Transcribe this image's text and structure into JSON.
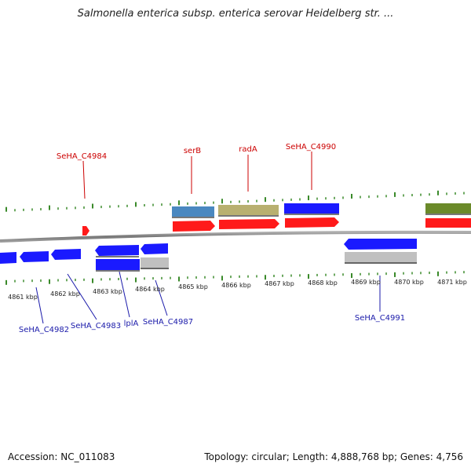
{
  "title": "Salmonella enterica subsp. enterica serovar Heidelberg str. ...",
  "footer": {
    "accession": "Accession: NC_011083",
    "topology": "Topology: circular; Length: 4,888,768 bp; Genes: 4,756"
  },
  "colors": {
    "forward_label": "#cc0000",
    "reverse_label": "#1a1aaa",
    "tick": "#3a8a2a",
    "backbone": "#888888"
  },
  "scale_labels": [
    "4861 kbp",
    "4862 kbp",
    "4863 kbp",
    "4864 kbp",
    "4865 kbp",
    "4866 kbp",
    "4867 kbp",
    "4868 kbp",
    "4869 kbp",
    "4870 kbp",
    "4871 kbp"
  ],
  "gene_labels": {
    "forward": [
      "SeHA_C4984",
      "serB",
      "radA",
      "SeHA_C4990"
    ],
    "reverse": [
      "SeHA_C4982",
      "SeHA_C4983",
      "lplA",
      "SeHA_C4987",
      "SeHA_C4991"
    ]
  },
  "feature_colors": {
    "cds": "#ff1a1a",
    "gene_forward_blue": "#1a1aff",
    "gene_steel": "#4a88c0",
    "gene_olive": "#b8b070",
    "gene_green": "#6b8a2a",
    "gene_grey": "#c0c0c0"
  }
}
